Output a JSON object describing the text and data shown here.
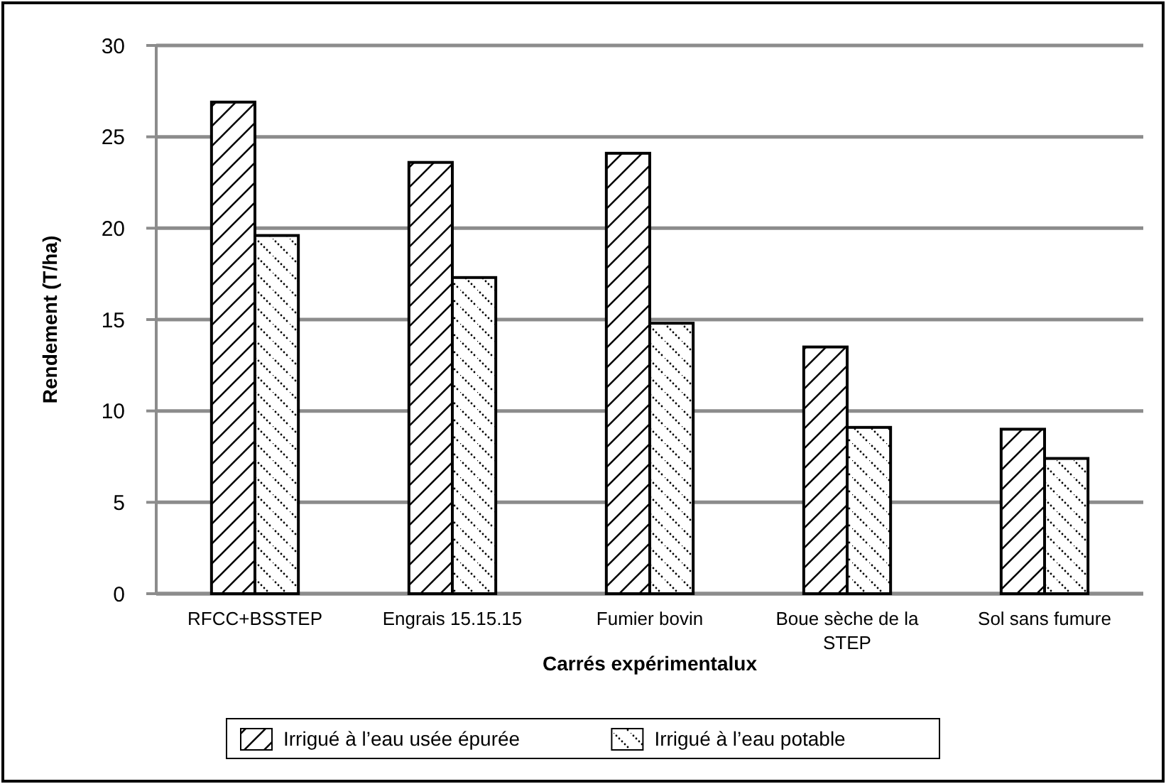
{
  "chart_data": {
    "type": "bar",
    "xlabel": "Carrés expérimentalux",
    "ylabel": "Rendement (T/ha)",
    "categories": [
      "RFCC+BSSTEP",
      "Engrais 15.15.15",
      "Fumier bovin",
      "Boue sèche de la STEP",
      "Sol sans fumure"
    ],
    "series": [
      {
        "name": "Irrigué à l’eau usée épurée",
        "color": "#000000",
        "values": [
          26.9,
          23.6,
          24.1,
          13.5,
          9.0
        ]
      },
      {
        "name": "Irrigué à l’eau potable",
        "color": "#000000",
        "values": [
          19.6,
          17.3,
          14.8,
          9.1,
          7.4
        ]
      }
    ],
    "ylim": [
      0,
      30
    ],
    "yticks": [
      0,
      5,
      10,
      15,
      20,
      25,
      30
    ],
    "grid": "y",
    "legend": "bottom"
  }
}
